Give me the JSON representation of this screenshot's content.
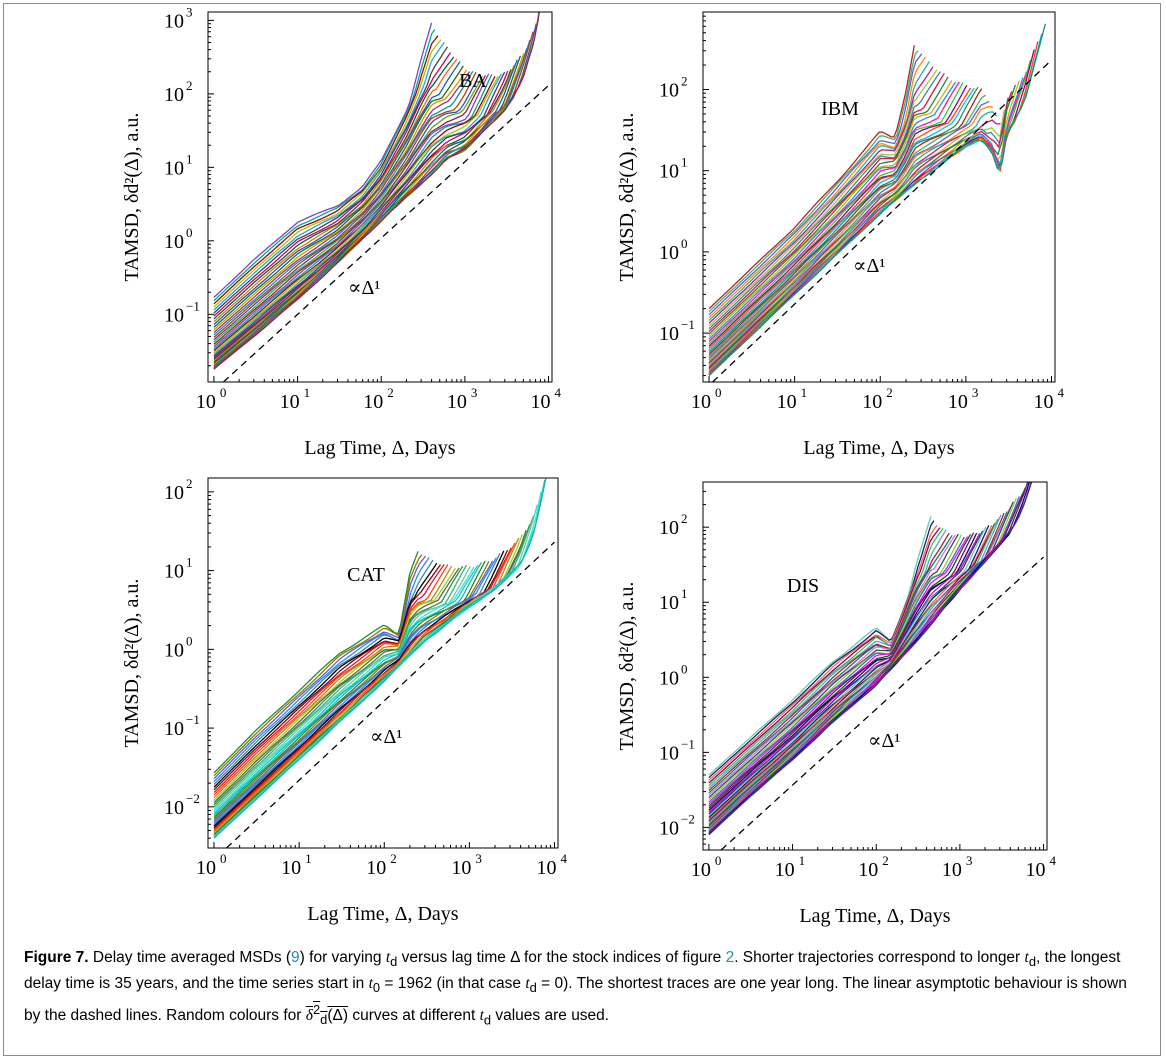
{
  "chart_data": [
    {
      "type": "line",
      "title": "BA",
      "xlabel": "Lag Time, Δ, Days",
      "ylabel": "TAMSD, δd²(Δ), a.u.",
      "annotation": "∝Δ¹",
      "x_scale": "log",
      "y_scale": "log",
      "xlim": [
        0.85,
        11000
      ],
      "ylim": [
        0.012,
        1300
      ],
      "x_ticks": [
        {
          "v": 1,
          "e": "0"
        },
        {
          "v": 10,
          "e": "1"
        },
        {
          "v": 100,
          "e": "2"
        },
        {
          "v": 1000,
          "e": "3"
        },
        {
          "v": 10000,
          "e": "4"
        }
      ],
      "y_ticks": [
        {
          "v": 0.1,
          "e": "−1"
        },
        {
          "v": 1,
          "e": "0"
        },
        {
          "v": 10,
          "e": "1"
        },
        {
          "v": 100,
          "e": "2"
        },
        {
          "v": 1000,
          "e": "3"
        }
      ],
      "reference_line": [
        [
          1.3,
          0.012
        ],
        [
          10000,
          130
        ]
      ],
      "series_count": 36,
      "x_end_min": 350,
      "x_end_max": 8500,
      "bottom_curve": [
        [
          1,
          0.018
        ],
        [
          3,
          0.05
        ],
        [
          10,
          0.16
        ],
        [
          30,
          0.5
        ],
        [
          100,
          1.9
        ],
        [
          300,
          6
        ],
        [
          600,
          13
        ],
        [
          1000,
          17
        ],
        [
          2000,
          40
        ],
        [
          3000,
          60
        ],
        [
          5000,
          150
        ],
        [
          7000,
          350
        ],
        [
          8500,
          1200
        ]
      ],
      "top_curve": [
        [
          1,
          0.17
        ],
        [
          3,
          0.55
        ],
        [
          10,
          1.8
        ],
        [
          30,
          3
        ],
        [
          60,
          5.5
        ],
        [
          100,
          12
        ],
        [
          200,
          60
        ],
        [
          300,
          200
        ],
        [
          400,
          400
        ]
      ],
      "colors": [
        "#8b2252",
        "#66aa00",
        "#2255cc",
        "#cc3300",
        "#009999",
        "#993399",
        "#cc9900",
        "#336600",
        "#0066cc",
        "#ff6600",
        "#006633",
        "#cc0066",
        "#444444",
        "#3399ff",
        "#99cc00",
        "#aa0000",
        "#00aa88",
        "#7744cc"
      ]
    },
    {
      "type": "line",
      "title": "IBM",
      "xlabel": "Lag Time, Δ, Days",
      "ylabel": "TAMSD, δd²(Δ), a.u.",
      "annotation": "∝Δ¹",
      "x_scale": "log",
      "y_scale": "log",
      "xlim": [
        0.85,
        11000
      ],
      "ylim": [
        0.025,
        900
      ],
      "x_ticks": [
        {
          "v": 1,
          "e": "0"
        },
        {
          "v": 10,
          "e": "1"
        },
        {
          "v": 100,
          "e": "2"
        },
        {
          "v": 1000,
          "e": "3"
        },
        {
          "v": 10000,
          "e": "4"
        }
      ],
      "y_ticks": [
        {
          "v": 0.1,
          "e": "−1"
        },
        {
          "v": 1,
          "e": "0"
        },
        {
          "v": 10,
          "e": "1"
        },
        {
          "v": 100,
          "e": "2"
        }
      ],
      "reference_line": [
        [
          1.1,
          0.025
        ],
        [
          10000,
          230
        ]
      ],
      "series_count": 36,
      "x_end_min": 250,
      "x_end_max": 8500,
      "bottom_curve": [
        [
          1,
          0.03
        ],
        [
          3,
          0.09
        ],
        [
          10,
          0.3
        ],
        [
          30,
          0.9
        ],
        [
          100,
          3
        ],
        [
          300,
          8
        ],
        [
          1000,
          20
        ],
        [
          1500,
          25
        ],
        [
          2000,
          18
        ],
        [
          2500,
          9
        ],
        [
          3000,
          28
        ],
        [
          5000,
          70
        ],
        [
          8500,
          300
        ]
      ],
      "top_curve": [
        [
          1,
          0.2
        ],
        [
          3,
          0.6
        ],
        [
          10,
          2
        ],
        [
          30,
          7
        ],
        [
          100,
          30
        ],
        [
          150,
          25
        ],
        [
          200,
          60
        ],
        [
          250,
          160
        ]
      ],
      "colors": [
        "#2e8b57",
        "#00bfff",
        "#ff4500",
        "#8b008b",
        "#32cd32",
        "#ff1493",
        "#1e90ff",
        "#daa520",
        "#228b22",
        "#dc143c",
        "#4682b4",
        "#9acd32",
        "#c71585",
        "#20b2aa",
        "#ff8c00",
        "#6a5acd",
        "#3cb371",
        "#b22222"
      ]
    },
    {
      "type": "line",
      "title": "CAT",
      "xlabel": "Lag Time, Δ, Days",
      "ylabel": "TAMSD, δd²(Δ), a.u.",
      "annotation": "∝Δ¹",
      "x_scale": "log",
      "y_scale": "log",
      "xlim": [
        0.85,
        11000
      ],
      "ylim": [
        0.003,
        150
      ],
      "x_ticks": [
        {
          "v": 1,
          "e": "0"
        },
        {
          "v": 10,
          "e": "1"
        },
        {
          "v": 100,
          "e": "2"
        },
        {
          "v": 1000,
          "e": "3"
        },
        {
          "v": 10000,
          "e": "4"
        }
      ],
      "y_ticks": [
        {
          "v": 0.01,
          "e": "−2"
        },
        {
          "v": 0.1,
          "e": "−1"
        },
        {
          "v": 1,
          "e": "0"
        },
        {
          "v": 10,
          "e": "1"
        },
        {
          "v": 100,
          "e": "2"
        }
      ],
      "reference_line": [
        [
          1.4,
          0.003
        ],
        [
          10000,
          23
        ]
      ],
      "series_count": 36,
      "x_end_min": 250,
      "x_end_max": 8500,
      "bottom_curve": [
        [
          1,
          0.004
        ],
        [
          3,
          0.012
        ],
        [
          10,
          0.04
        ],
        [
          30,
          0.12
        ],
        [
          100,
          0.4
        ],
        [
          300,
          1.3
        ],
        [
          1000,
          3.5
        ],
        [
          2000,
          6
        ],
        [
          4000,
          12
        ],
        [
          6000,
          25
        ],
        [
          8500,
          100
        ]
      ],
      "top_curve": [
        [
          1,
          0.027
        ],
        [
          3,
          0.09
        ],
        [
          10,
          0.3
        ],
        [
          30,
          0.9
        ],
        [
          100,
          2
        ],
        [
          150,
          1.5
        ],
        [
          200,
          6
        ],
        [
          250,
          8
        ]
      ],
      "colors": [
        "#20b2aa",
        "#00ced1",
        "#40e0d0",
        "#66cdaa",
        "#3cb371",
        "#2e8b57",
        "#556b2f",
        "#9acd32",
        "#b8860b",
        "#ff4500",
        "#dc143c",
        "#8b0000",
        "#000000",
        "#4682b4",
        "#1e90ff",
        "#6a5acd",
        "#808000",
        "#228b22"
      ]
    },
    {
      "type": "line",
      "title": "DIS",
      "xlabel": "Lag Time, Δ, Days",
      "ylabel": "TAMSD, δd²(Δ), a.u.",
      "annotation": "∝Δ¹",
      "x_scale": "log",
      "y_scale": "log",
      "xlim": [
        0.85,
        11000
      ],
      "ylim": [
        0.005,
        400
      ],
      "x_ticks": [
        {
          "v": 1,
          "e": "0"
        },
        {
          "v": 10,
          "e": "1"
        },
        {
          "v": 100,
          "e": "2"
        },
        {
          "v": 1000,
          "e": "3"
        },
        {
          "v": 10000,
          "e": "4"
        }
      ],
      "y_ticks": [
        {
          "v": 0.01,
          "e": "−2"
        },
        {
          "v": 0.1,
          "e": "−1"
        },
        {
          "v": 1,
          "e": "0"
        },
        {
          "v": 10,
          "e": "1"
        },
        {
          "v": 100,
          "e": "2"
        }
      ],
      "reference_line": [
        [
          1.4,
          0.005
        ],
        [
          10000,
          40
        ]
      ],
      "series_count": 36,
      "x_end_min": 450,
      "x_end_max": 8500,
      "bottom_curve": [
        [
          1,
          0.008
        ],
        [
          3,
          0.025
        ],
        [
          10,
          0.08
        ],
        [
          30,
          0.25
        ],
        [
          100,
          0.8
        ],
        [
          300,
          3
        ],
        [
          1000,
          15
        ],
        [
          3000,
          60
        ],
        [
          6000,
          150
        ],
        [
          8500,
          330
        ]
      ],
      "top_curve": [
        [
          1,
          0.05
        ],
        [
          3,
          0.15
        ],
        [
          10,
          0.5
        ],
        [
          30,
          1.6
        ],
        [
          100,
          4.5
        ],
        [
          150,
          3
        ],
        [
          200,
          7
        ],
        [
          300,
          25
        ],
        [
          450,
          60
        ]
      ],
      "colors": [
        "#1f3a93",
        "#c71585",
        "#00008b",
        "#8b008b",
        "#006400",
        "#ff00ff",
        "#4169e1",
        "#9acd32",
        "#2f4f4f",
        "#da70d6",
        "#008080",
        "#b22222",
        "#6495ed",
        "#32cd32",
        "#800080",
        "#ff6347",
        "#191970",
        "#66cdaa"
      ]
    }
  ],
  "caption": {
    "label": "Figure 7.",
    "pre1": " Delay time averaged MSDs (",
    "eq_ref": "9",
    "mid1": ") for varying ",
    "td1": "t",
    "mid2": " versus lag time Δ for the stock indices of figure ",
    "fig_ref": "2",
    "mid3": ". Shorter trajectories correspond to longer ",
    "td2": "t",
    "mid4": ", the longest delay time is 35 years, and the time series start in ",
    "t0": "t",
    "mid5": " = 1962 (in that case ",
    "td3": "t",
    "mid6": " = 0). The shortest traces are one year long. The linear asymptotic behaviour is shown by the dashed lines. Random colours for ",
    "delta": "δ",
    "delta_rest": "(Δ)",
    "mid7": " curves at different ",
    "td4": "t",
    "end": " values are used.",
    "sub_d": "d",
    "sub_0": "0",
    "sup_2": "2"
  }
}
